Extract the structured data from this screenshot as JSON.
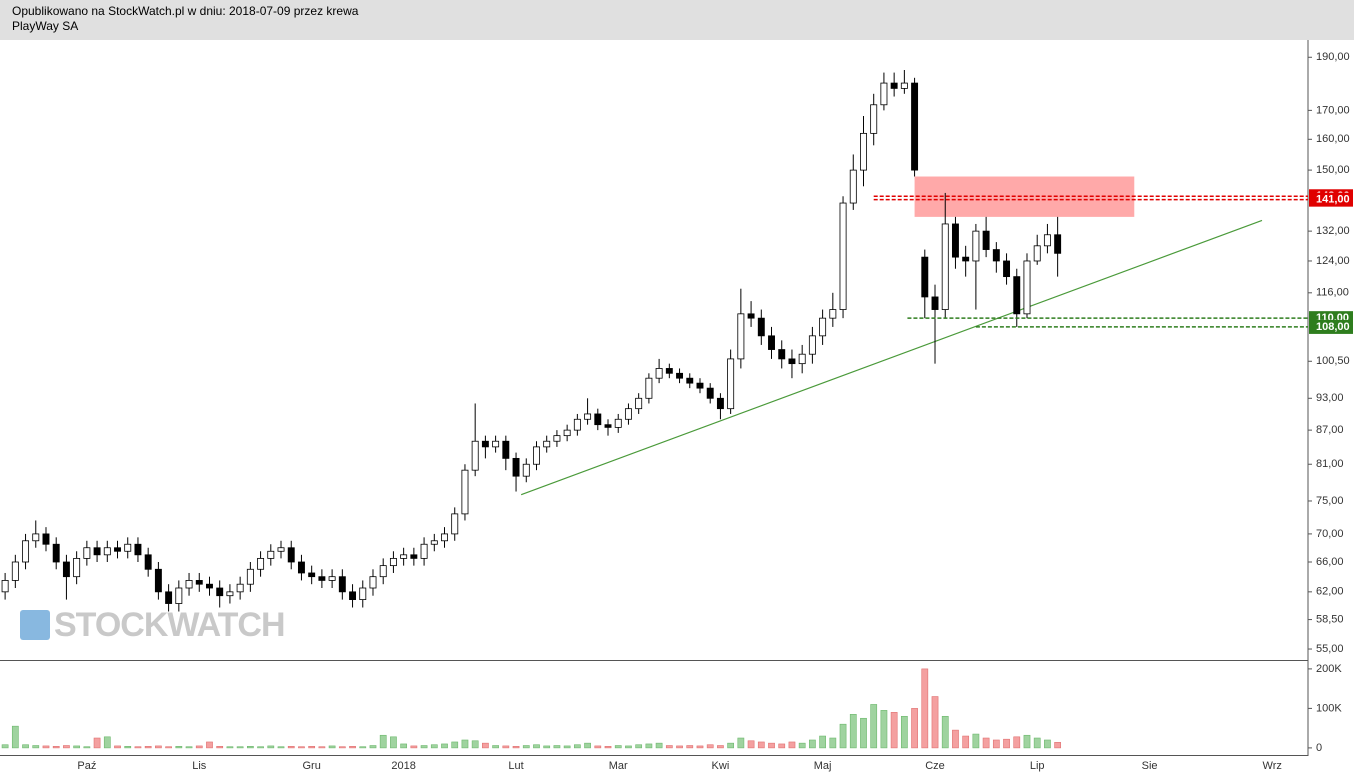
{
  "chart_data": {
    "type": "candlestick",
    "title": "Opublikowano na StockWatch.pl w dniu: 2018-07-09 przez krewa",
    "subtitle": "PlayWay SA",
    "watermark": "STOCKWATCH",
    "log_scale": true,
    "up_color": "#ffffff",
    "down_color": "#000000",
    "volume_up_color": "#9fd39f",
    "volume_down_color": "#f4a0a0",
    "categories": [
      null,
      null,
      null,
      null,
      null,
      null,
      null,
      null,
      "Paź",
      null,
      null,
      null,
      null,
      null,
      null,
      null,
      null,
      null,
      null,
      "Lis",
      null,
      null,
      null,
      null,
      null,
      null,
      null,
      null,
      null,
      null,
      "Gru",
      null,
      null,
      null,
      null,
      null,
      null,
      null,
      null,
      "2018",
      null,
      null,
      null,
      null,
      null,
      null,
      null,
      null,
      null,
      null,
      "Lut",
      null,
      null,
      null,
      null,
      null,
      null,
      null,
      null,
      null,
      "Mar",
      null,
      null,
      null,
      null,
      null,
      null,
      null,
      null,
      null,
      "Kwi",
      null,
      null,
      null,
      null,
      null,
      null,
      null,
      null,
      null,
      "Maj",
      null,
      null,
      null,
      null,
      null,
      null,
      null,
      null,
      null,
      null,
      "Cze",
      null,
      null,
      null,
      null,
      null,
      null,
      null,
      null,
      null,
      "Lip",
      null,
      null,
      null,
      null,
      null,
      null,
      null,
      null,
      null,
      null,
      "Sie",
      null,
      null,
      null,
      null,
      null,
      null,
      null,
      null,
      null,
      null,
      null,
      "Wrz",
      null,
      null,
      null
    ],
    "open": [
      62,
      63.5,
      66,
      69,
      70,
      68.5,
      66,
      64,
      66.5,
      68,
      67,
      68,
      67.5,
      68.5,
      67,
      65,
      62,
      60.5,
      62.5,
      63.5,
      63,
      62.5,
      61.5,
      62,
      63,
      65,
      66.5,
      67.5,
      68,
      66,
      64.5,
      64,
      63.5,
      64,
      62,
      61,
      62.5,
      64,
      65.5,
      66.5,
      67,
      66.5,
      68.5,
      69,
      70,
      73,
      80,
      85,
      84,
      85,
      82,
      79,
      81,
      84,
      85,
      86,
      87,
      89,
      90,
      88,
      87.5,
      89,
      91,
      93,
      97,
      99,
      98,
      97,
      96,
      95,
      93,
      91,
      101,
      111,
      110,
      106,
      103,
      101,
      100,
      102,
      106,
      110,
      112,
      140,
      150,
      162,
      172,
      180,
      178,
      180,
      125,
      115,
      112,
      134,
      125,
      124,
      132,
      127,
      124,
      120,
      111,
      124,
      128,
      131,
      null,
      null,
      null,
      null,
      null,
      null,
      null,
      null,
      null,
      null,
      null,
      null,
      null,
      null,
      null,
      null,
      null,
      null,
      null,
      null,
      null,
      null,
      null,
      null
    ],
    "high": [
      64.5,
      67,
      70,
      72,
      71,
      69.5,
      67,
      67.5,
      69,
      69,
      69,
      69,
      69.5,
      69.5,
      68,
      66,
      63,
      63.5,
      64.5,
      64.5,
      64,
      63.5,
      63,
      64,
      66,
      67.5,
      68.5,
      69,
      69,
      67,
      65.5,
      65,
      65,
      65,
      63,
      63.5,
      65,
      66.5,
      67.5,
      68,
      68,
      69.5,
      70,
      71,
      74,
      81,
      92,
      86,
      86,
      86,
      83,
      82,
      85,
      86,
      87,
      88,
      90,
      93,
      91,
      89,
      90,
      92,
      94,
      98,
      101,
      100,
      99,
      98,
      97,
      96,
      94,
      103,
      117,
      114,
      112,
      108,
      105,
      103,
      104,
      108,
      112,
      116,
      142,
      155,
      168,
      176,
      184,
      184,
      185,
      182,
      127,
      118,
      143,
      136,
      128,
      134,
      136,
      129,
      126,
      122,
      126,
      131,
      134,
      136,
      null,
      null,
      null,
      null,
      null,
      null,
      null,
      null,
      null,
      null,
      null,
      null,
      null,
      null,
      null,
      null,
      null,
      null,
      null,
      null,
      null,
      null,
      null,
      null
    ],
    "low": [
      61,
      62.5,
      65,
      68,
      67.5,
      65,
      61,
      63,
      65.5,
      66,
      66,
      66.5,
      66.5,
      66,
      64,
      61,
      59.5,
      59.5,
      61.5,
      62,
      61.5,
      60,
      60.5,
      61,
      62,
      64,
      65.5,
      66.5,
      65,
      63.5,
      63,
      62.5,
      62.5,
      61,
      60,
      60,
      61.5,
      63,
      64.5,
      65.5,
      65.5,
      65.5,
      67.5,
      68,
      69,
      72,
      79,
      82,
      83,
      80,
      76.5,
      78,
      80,
      83,
      84,
      85,
      86,
      88,
      87,
      86,
      86.5,
      88,
      90,
      92,
      96,
      97,
      96,
      95,
      94,
      92,
      89,
      90,
      99,
      108,
      104,
      101,
      99,
      97,
      98,
      100,
      104,
      108,
      110,
      138,
      145,
      158,
      170,
      175,
      176,
      148,
      110,
      100,
      110,
      122,
      120,
      112,
      125,
      121,
      118,
      108,
      110,
      123,
      126,
      120,
      null,
      null,
      null,
      null,
      null,
      null,
      null,
      null,
      null,
      null,
      null,
      null,
      null,
      null,
      null,
      null,
      null,
      null,
      null,
      null,
      null,
      null,
      null,
      null
    ],
    "close": [
      63.5,
      66,
      69,
      70,
      68.5,
      66,
      64,
      66.5,
      68,
      67,
      68,
      67.5,
      68.5,
      67,
      65,
      62,
      60.5,
      62.5,
      63.5,
      63,
      62.5,
      61.5,
      62,
      63,
      65,
      66.5,
      67.5,
      68,
      66,
      64.5,
      64,
      63.5,
      64,
      62,
      61,
      62.5,
      64,
      65.5,
      66.5,
      67,
      66.5,
      68.5,
      69,
      70,
      73,
      80,
      85,
      84,
      85,
      82,
      79,
      81,
      84,
      85,
      86,
      87,
      89,
      90,
      88,
      87.5,
      89,
      91,
      93,
      97,
      99,
      98,
      97,
      96,
      95,
      93,
      91,
      101,
      111,
      110,
      106,
      103,
      101,
      100,
      102,
      106,
      110,
      112,
      140,
      150,
      162,
      172,
      180,
      178,
      180,
      150,
      115,
      112,
      134,
      125,
      124,
      132,
      127,
      124,
      120,
      111,
      124,
      128,
      131,
      126,
      null,
      null,
      null,
      null,
      null,
      null,
      null,
      null,
      null,
      null,
      null,
      null,
      null,
      null,
      null,
      null,
      null,
      null,
      null,
      null,
      null,
      null,
      null,
      null
    ],
    "volume": [
      8000,
      55000,
      8000,
      6000,
      5000,
      4000,
      6000,
      5000,
      3000,
      25000,
      28000,
      5000,
      4000,
      3000,
      4000,
      5000,
      3000,
      4000,
      3000,
      5000,
      15000,
      4000,
      3000,
      3000,
      4000,
      3000,
      5000,
      3000,
      4000,
      3000,
      4000,
      3000,
      5000,
      3000,
      4000,
      3000,
      6000,
      32000,
      28000,
      10000,
      5000,
      6000,
      8000,
      10000,
      15000,
      20000,
      18000,
      12000,
      6000,
      5000,
      4000,
      6000,
      8000,
      5000,
      6000,
      5000,
      8000,
      12000,
      5000,
      4000,
      6000,
      5000,
      8000,
      10000,
      12000,
      6000,
      5000,
      6000,
      5000,
      8000,
      6000,
      12000,
      25000,
      18000,
      15000,
      12000,
      10000,
      15000,
      12000,
      20000,
      30000,
      25000,
      60000,
      85000,
      75000,
      110000,
      95000,
      90000,
      80000,
      100000,
      200000,
      130000,
      80000,
      45000,
      30000,
      35000,
      25000,
      20000,
      22000,
      28000,
      32000,
      25000,
      20000,
      14000,
      null,
      null,
      null,
      null,
      null,
      null,
      null,
      null,
      null,
      null,
      null,
      null,
      null,
      null,
      null,
      null,
      null,
      null,
      null,
      null,
      null,
      null,
      null,
      null
    ],
    "ylim": [
      53.75,
      197
    ],
    "yticks": [
      {
        "value": 55,
        "label": "55,00"
      },
      {
        "value": 58.5,
        "label": "58,50"
      },
      {
        "value": 62,
        "label": "62,00"
      },
      {
        "value": 66,
        "label": "66,00"
      },
      {
        "value": 70,
        "label": "70,00"
      },
      {
        "value": 75,
        "label": "75,00"
      },
      {
        "value": 81,
        "label": "81,00"
      },
      {
        "value": 87,
        "label": "87,00"
      },
      {
        "value": 93,
        "label": "93,00"
      },
      {
        "value": 100.5,
        "label": "100,50"
      },
      {
        "value": 116,
        "label": "116,00"
      },
      {
        "value": 124,
        "label": "124,00"
      },
      {
        "value": 132,
        "label": "132,00"
      },
      {
        "value": 150,
        "label": "150,00"
      },
      {
        "value": 160,
        "label": "160,00"
      },
      {
        "value": 170,
        "label": "170,00"
      },
      {
        "value": 190,
        "label": "190,00"
      }
    ],
    "volume_ylim": [
      -18000,
      220000
    ],
    "volume_ticks": [
      {
        "value": 0,
        "label": "0"
      },
      {
        "value": 100000,
        "label": "100K"
      },
      {
        "value": 200000,
        "label": "200K"
      }
    ],
    "levels": [
      {
        "value": 142,
        "label": "142,00",
        "color": "#e00000",
        "from": 85
      },
      {
        "value": 141,
        "label": "141,00",
        "color": "#e00000",
        "from": 85
      },
      {
        "value": 110,
        "label": "110,00",
        "color": "#2e7d1e",
        "from": 88.3
      },
      {
        "value": 108,
        "label": "108,00",
        "color": "#2e7d1e",
        "from": 95
      }
    ],
    "zone": {
      "from": 89,
      "to": 110.5,
      "low": 136,
      "high": 148,
      "color": "#ff9a9a"
    },
    "trendline": {
      "from": [
        50.5,
        76
      ],
      "to": [
        123,
        135
      ],
      "color": "#4a9a3a"
    }
  }
}
